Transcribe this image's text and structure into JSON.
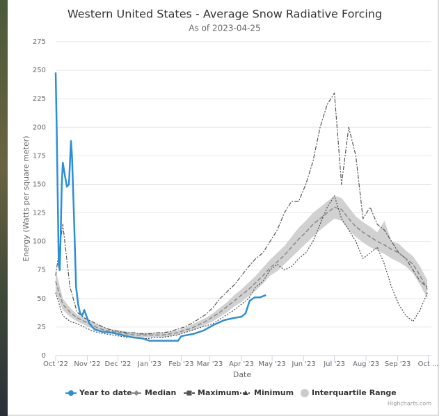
{
  "chart_data": {
    "type": "line",
    "title": "Western United States - Average Snow Radiative Forcing",
    "subtitle": "As of 2023-04-25",
    "x_label": "Date",
    "y_label": "Energy (Watts per square meter)",
    "credits": "Highcharts.com",
    "grid": true,
    "legend": "bottom",
    "xlim": [
      0,
      368
    ],
    "ylim": [
      0,
      275
    ],
    "yticks": [
      0,
      25,
      50,
      75,
      100,
      125,
      150,
      175,
      200,
      225,
      250,
      275
    ],
    "xticks": [
      {
        "value": 0,
        "label": "Oct '22"
      },
      {
        "value": 31,
        "label": "Nov '22"
      },
      {
        "value": 61,
        "label": "Dec '22"
      },
      {
        "value": 92,
        "label": "Jan '23"
      },
      {
        "value": 123,
        "label": "Feb '23"
      },
      {
        "value": 151,
        "label": "Mar '23"
      },
      {
        "value": 182,
        "label": "Apr '23"
      },
      {
        "value": 212,
        "label": "May '23"
      },
      {
        "value": 243,
        "label": "Jun '23"
      },
      {
        "value": 273,
        "label": "Jul '23"
      },
      {
        "value": 304,
        "label": "Aug '23"
      },
      {
        "value": 335,
        "label": "Sep '23"
      },
      {
        "value": 365,
        "label": "Oct ..."
      }
    ],
    "x": [
      0,
      7,
      14,
      21,
      28,
      35,
      42,
      49,
      56,
      63,
      70,
      77,
      84,
      91,
      98,
      105,
      112,
      119,
      126,
      133,
      140,
      147,
      154,
      161,
      168,
      175,
      182,
      189,
      196,
      203,
      210,
      217,
      224,
      231,
      238,
      245,
      252,
      259,
      266,
      273,
      280,
      287,
      294,
      301,
      308,
      315,
      322,
      329,
      336,
      343,
      350,
      357,
      364
    ],
    "series": [
      {
        "name": "Year to date",
        "color": "#2b8fd8",
        "dash": "solid",
        "width": 2.5,
        "marker": "circle",
        "x": [
          0,
          1,
          3,
          4,
          5,
          6,
          7,
          9,
          11,
          13,
          15,
          16,
          18,
          20,
          22,
          24,
          26,
          28,
          30,
          33,
          38,
          45,
          55,
          65,
          75,
          85,
          92,
          105,
          120,
          123,
          135,
          145,
          155,
          165,
          175,
          182,
          186,
          190,
          195,
          200,
          206
        ],
        "values": [
          248,
          200,
          80,
          75,
          110,
          150,
          169,
          158,
          148,
          150,
          188,
          175,
          120,
          60,
          45,
          37,
          35,
          40,
          35,
          28,
          23,
          21,
          20,
          18,
          16,
          15,
          13,
          13,
          13,
          17,
          19,
          22,
          27,
          31,
          33,
          34,
          37,
          48,
          51,
          51,
          53
        ]
      },
      {
        "name": "Median",
        "color": "#888888",
        "dash": "dash",
        "width": 1.5,
        "marker": "diamond",
        "values": [
          65,
          45,
          38,
          33,
          30,
          27,
          24,
          22,
          21,
          20,
          19,
          18,
          18,
          18,
          18,
          18,
          19,
          20,
          22,
          24,
          27,
          30,
          34,
          38,
          43,
          48,
          53,
          58,
          64,
          70,
          77,
          82,
          88,
          95,
          102,
          108,
          115,
          120,
          125,
          130,
          128,
          120,
          113,
          108,
          104,
          100,
          97,
          93,
          90,
          85,
          80,
          70,
          58
        ]
      },
      {
        "name": "Maximum",
        "color": "#555555",
        "dash": "dashdot",
        "width": 1.2,
        "marker": "square",
        "values": [
          70,
          115,
          60,
          38,
          33,
          30,
          27,
          24,
          22,
          21,
          20,
          20,
          19,
          19,
          20,
          20,
          21,
          23,
          25,
          28,
          32,
          36,
          42,
          50,
          56,
          62,
          70,
          78,
          85,
          90,
          100,
          110,
          125,
          135,
          135,
          150,
          170,
          200,
          220,
          230,
          150,
          200,
          175,
          120,
          130,
          115,
          110,
          100,
          90,
          85,
          75,
          65,
          60
        ]
      },
      {
        "name": "Minimum",
        "color": "#444444",
        "dash": "dot",
        "width": 1.2,
        "marker": "triangle",
        "values": [
          55,
          35,
          30,
          28,
          25,
          22,
          20,
          19,
          18,
          17,
          16,
          16,
          15,
          15,
          16,
          16,
          17,
          18,
          20,
          22,
          24,
          26,
          28,
          32,
          36,
          40,
          45,
          50,
          60,
          65,
          75,
          80,
          75,
          78,
          85,
          90,
          100,
          115,
          130,
          140,
          120,
          110,
          100,
          85,
          90,
          95,
          80,
          60,
          45,
          35,
          30,
          40,
          55
        ]
      }
    ],
    "band": {
      "name": "Interquartile Range",
      "color": "#cccccc",
      "low": [
        55,
        40,
        34,
        30,
        27,
        24,
        22,
        20,
        19,
        18,
        17,
        16,
        16,
        16,
        16,
        16,
        17,
        18,
        20,
        22,
        24,
        27,
        30,
        34,
        38,
        43,
        47,
        52,
        57,
        63,
        70,
        74,
        80,
        86,
        92,
        98,
        104,
        110,
        115,
        120,
        118,
        110,
        104,
        99,
        95,
        92,
        89,
        85,
        82,
        78,
        72,
        62,
        50
      ],
      "high": [
        75,
        50,
        42,
        36,
        33,
        30,
        27,
        24,
        23,
        22,
        21,
        20,
        20,
        20,
        20,
        20,
        21,
        22,
        24,
        27,
        30,
        33,
        37,
        42,
        47,
        53,
        58,
        64,
        70,
        77,
        84,
        90,
        96,
        104,
        112,
        118,
        125,
        130,
        135,
        140,
        138,
        130,
        122,
        117,
        113,
        108,
        118,
        100,
        98,
        92,
        87,
        78,
        66
      ]
    }
  }
}
